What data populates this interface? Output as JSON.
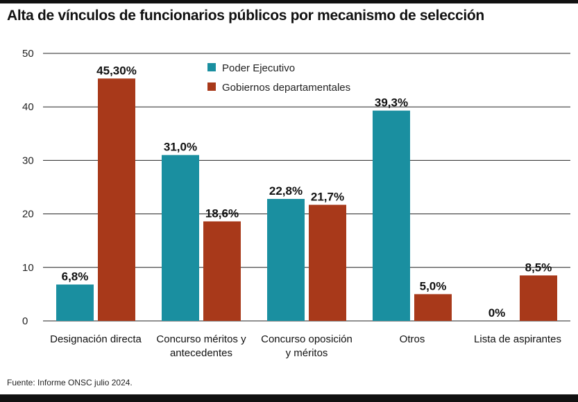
{
  "title": "Alta de vínculos de funcionarios públicos por mecanismo de selección",
  "source": "Fuente: Informe ONSC julio 2024.",
  "chart_data": {
    "type": "bar",
    "title": "Alta de vínculos de funcionarios públicos por mecanismo de selección",
    "categories": [
      [
        "Designación directa"
      ],
      [
        "Concurso méritos y",
        "antecedentes"
      ],
      [
        "Concurso oposición",
        "y méritos"
      ],
      [
        "Otros"
      ],
      [
        "Lista de aspirantes"
      ]
    ],
    "series": [
      {
        "name": "Poder Ejecutivo",
        "color": "#1a8fa0",
        "values": [
          6.8,
          31.0,
          22.8,
          39.3,
          0
        ],
        "labels": [
          "6,8%",
          "31,0%",
          "22,8%",
          "39,3%",
          "0%"
        ]
      },
      {
        "name": "Gobiernos departamentales",
        "color": "#a8391a",
        "values": [
          45.3,
          18.6,
          21.7,
          5.0,
          8.5
        ],
        "labels": [
          "45,30%",
          "18,6%",
          "21,7%",
          "5,0%",
          "8,5%"
        ]
      }
    ],
    "yticks": [
      0,
      10,
      20,
      30,
      40,
      50
    ],
    "ylim": [
      0,
      50
    ],
    "grid": true,
    "legend_position": "top-center",
    "xlabel": "",
    "ylabel": ""
  }
}
